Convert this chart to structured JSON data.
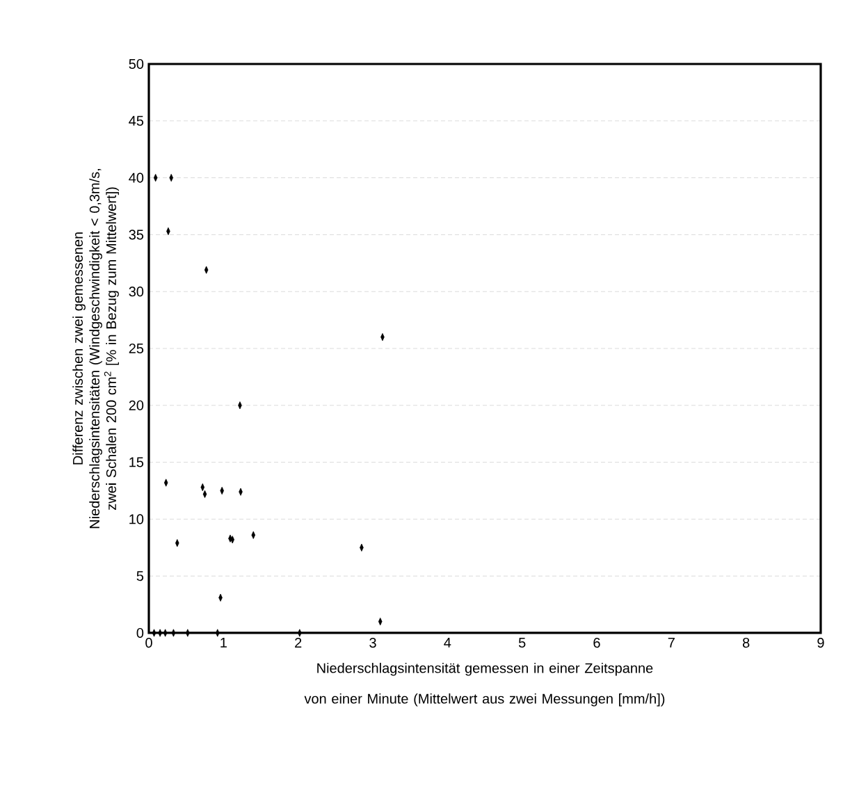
{
  "chart_data": {
    "type": "scatter",
    "xlabel": "Niederschlagsintensität gemessen in einer Zeitspanne von einer Minute (Mittelwert aus zwei Messungen [mm/h])",
    "ylabel": "Differenz zwischen zwei gemessenen Niederschlagsintensitäten (Windgeschwindigkeit < 0,3m/s, zwei Schalen 200 cm$^{2}$ [% in Bezug zum Mittelwert])",
    "x": [
      0.09,
      0.3,
      0.26,
      0.77,
      3.13,
      1.22,
      0.23,
      0.72,
      0.75,
      0.98,
      1.23,
      0.38,
      1.09,
      1.12,
      1.4,
      2.85,
      0.96,
      3.1,
      0.07,
      0.15,
      0.22,
      0.33,
      0.52,
      0.92,
      2.02
    ],
    "values": [
      40.0,
      40.0,
      35.3,
      31.9,
      26.0,
      20.0,
      13.2,
      12.8,
      12.2,
      12.5,
      12.4,
      7.9,
      8.3,
      8.2,
      8.6,
      7.5,
      3.1,
      1.0,
      0,
      0,
      0,
      0,
      0,
      0,
      0
    ],
    "color": "#000000",
    "marker": "diamond",
    "xlim": [
      0,
      9
    ],
    "xticks": [
      0,
      1,
      2,
      3,
      4,
      5,
      6,
      7,
      8,
      9
    ],
    "ylim": [
      0,
      50
    ],
    "yticks": [
      0,
      5,
      10,
      15,
      20,
      25,
      30,
      35,
      40,
      45,
      50
    ],
    "grid": "y"
  }
}
